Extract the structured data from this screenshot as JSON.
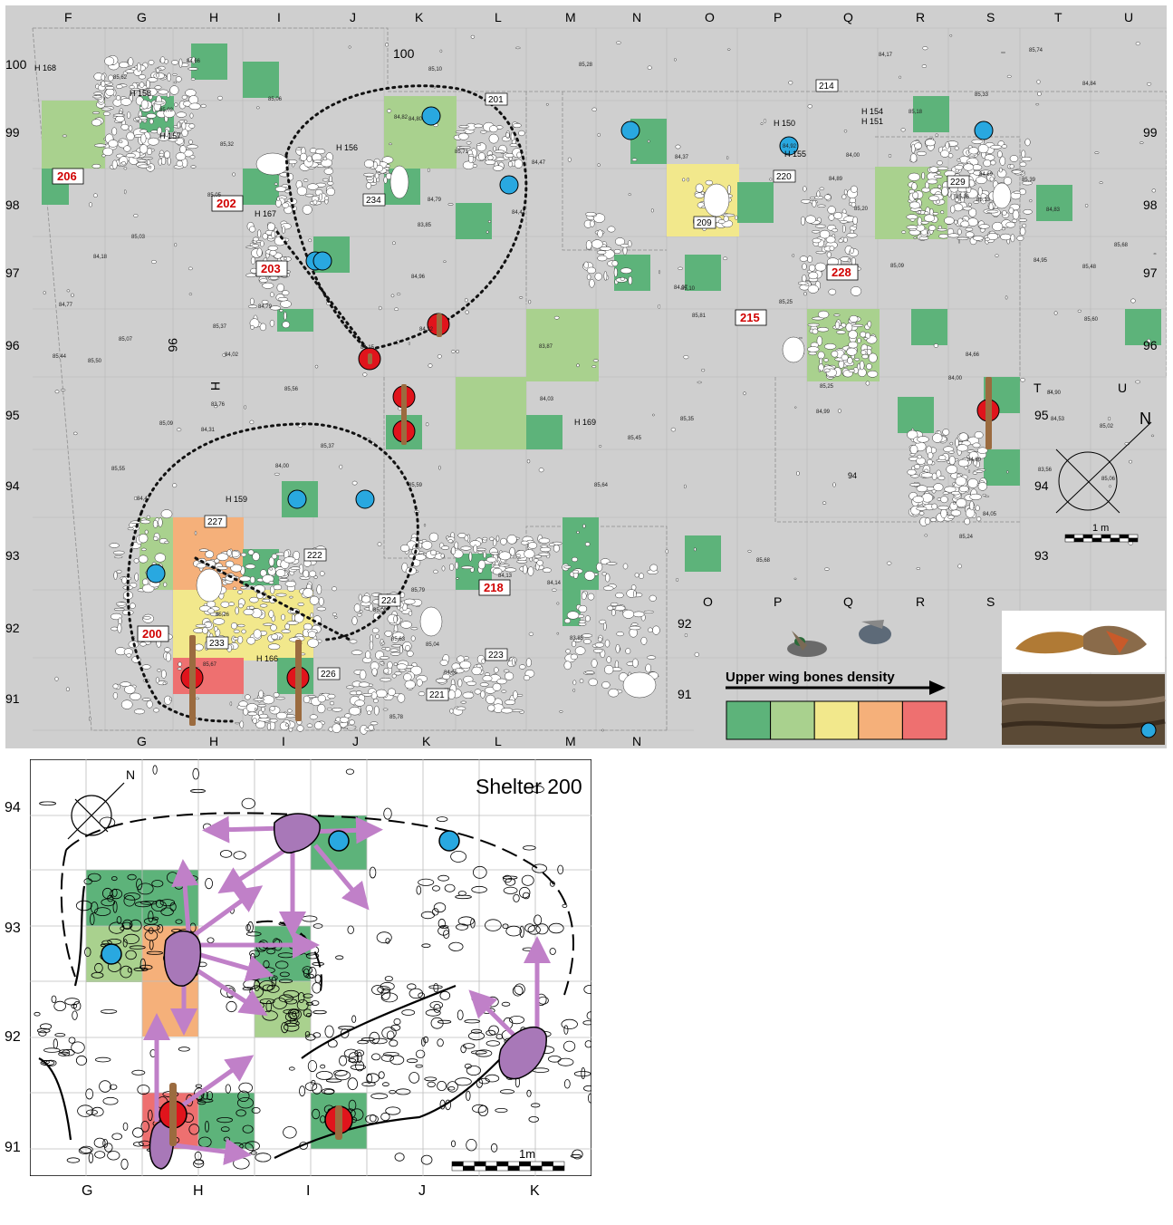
{
  "top_map": {
    "col_labels_top": [
      "F",
      "G",
      "H",
      "I",
      "J",
      "K",
      "L",
      "M",
      "N",
      "O",
      "P",
      "Q",
      "R",
      "S",
      "T",
      "U"
    ],
    "col_labels_bottom": [
      "G",
      "H",
      "I",
      "J",
      "K",
      "L",
      "M",
      "N"
    ],
    "col_labels_bottom_right": [
      "O",
      "P",
      "Q",
      "R",
      "S"
    ],
    "row_labels_left": [
      "100",
      "99",
      "98",
      "97",
      "96",
      "95",
      "94",
      "93",
      "92",
      "91"
    ],
    "row_labels_right": [
      "99",
      "98",
      "97",
      "96",
      "95",
      "94",
      "93"
    ],
    "extra_labels": {
      "top_100": "100",
      "rotated_96": "96",
      "rotated_h": "H",
      "right_t": "T",
      "right_u": "U",
      "inner_94": "94",
      "inner_92": "92",
      "inner_91": "91"
    },
    "hearths": [
      "H 168",
      "H 158",
      "H 157",
      "H 167",
      "H 156",
      "H 150",
      "H 155",
      "H 154",
      "H 151",
      "H 159",
      "H 166",
      "H 169"
    ],
    "structures_red": [
      "206",
      "202",
      "203",
      "200",
      "218",
      "228",
      "215"
    ],
    "structures_boxed": [
      "201",
      "214",
      "220",
      "209",
      "234",
      "229",
      "227",
      "222",
      "224",
      "233",
      "226",
      "223",
      "221"
    ],
    "elevations": [
      "85,71",
      "85,62",
      "85,37",
      "85,74",
      "85,45",
      "85,63",
      "85,64",
      "85,59",
      "85,55",
      "85,48",
      "85,56",
      "85,67",
      "85,68",
      "85,60",
      "85,78",
      "85,79",
      "85,37",
      "84,82",
      "85,18",
      "84,95",
      "84,90",
      "85,07",
      "84,97",
      "84,66",
      "84,84",
      "84,79",
      "84,69",
      "85,05",
      "84,79",
      "84,55",
      "84,47",
      "84,80",
      "84,66",
      "84,37",
      "84,13",
      "83,56",
      "84,15",
      "84,11",
      "84,17",
      "83,85",
      "84,00",
      "83,87",
      "83,85",
      "83,76",
      "84,00",
      "84,03",
      "84,07",
      "84,32",
      "85,44",
      "85,36",
      "85,50",
      "85,56",
      "85,25",
      "85,35",
      "85,39",
      "85,33",
      "85,27",
      "85,25",
      "85,09",
      "85,26",
      "85,02",
      "85,06",
      "84,99",
      "85,13",
      "85,11",
      "85,03",
      "84,92",
      "84,83",
      "84,18",
      "84,80",
      "84,77",
      "85,04",
      "85,10",
      "85,02",
      "85,20",
      "85,32",
      "85,28",
      "85,06",
      "85,24",
      "85,10",
      "85,09",
      "84,96",
      "85,00",
      "84,53",
      "84,41",
      "84,47",
      "84,31",
      "84,05",
      "84,14",
      "84,00",
      "84,05",
      "84,02",
      "83,86",
      "84,89",
      "84,84",
      "85,31",
      "85,68",
      "85,81"
    ],
    "legend": {
      "title": "Upper wing bones density",
      "colors": [
        "#5db37a",
        "#a9d18e",
        "#f2e88c",
        "#f5b07a",
        "#ee7070"
      ]
    },
    "scale_label": "1 m",
    "north_label": "N",
    "colors": {
      "background": "#cfcfcf",
      "green_dark": "#5db37a",
      "green_light": "#a9d18e",
      "yellow": "#f2e88c",
      "orange": "#f5b07a",
      "red_cell": "#ee7070",
      "blue_dot": "#29a8e0",
      "red_dot": "#e0141c",
      "bone": "#9b6b3f"
    }
  },
  "bottom_map": {
    "title": "Shelter 200",
    "row_labels": [
      "94",
      "93",
      "92",
      "91"
    ],
    "col_labels": [
      "G",
      "H",
      "I",
      "J",
      "K"
    ],
    "scale_label": "1m",
    "north_label": "N",
    "colors": {
      "arrow": "#c080c8",
      "stone_fill": "#a878b8"
    }
  }
}
